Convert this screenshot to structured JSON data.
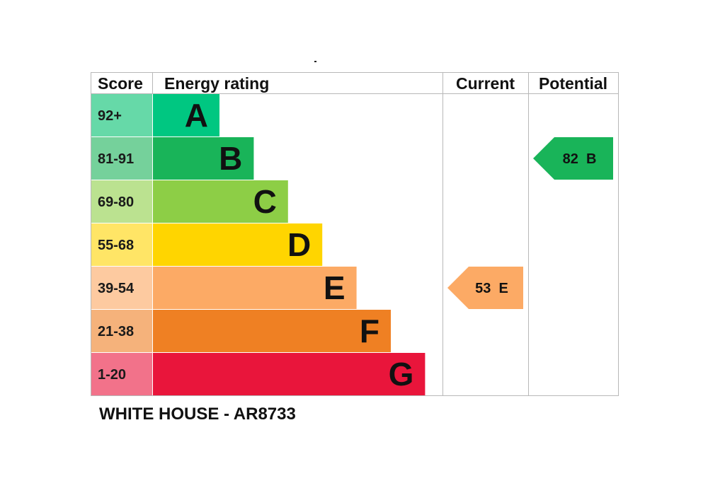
{
  "chart_data": {
    "type": "bar",
    "headers": {
      "score": "Score",
      "rating": "Energy rating",
      "current": "Current",
      "potential": "Potential"
    },
    "bands": [
      {
        "score": "92+",
        "letter": "A",
        "color": "#00c781",
        "score_bg": "#66d9a8"
      },
      {
        "score": "81-91",
        "letter": "B",
        "color": "#19b459",
        "score_bg": "#75d19b"
      },
      {
        "score": "69-80",
        "letter": "C",
        "color": "#8dce46",
        "score_bg": "#bbe290"
      },
      {
        "score": "55-68",
        "letter": "D",
        "color": "#ffd500",
        "score_bg": "#ffe566"
      },
      {
        "score": "39-54",
        "letter": "E",
        "color": "#fcaa65",
        "score_bg": "#fdcaa0"
      },
      {
        "score": "21-38",
        "letter": "F",
        "color": "#ef8023",
        "score_bg": "#f5b27b"
      },
      {
        "score": "1-20",
        "letter": "G",
        "color": "#e9153b",
        "score_bg": "#f2728a"
      }
    ],
    "current": {
      "value": 53,
      "band": "E",
      "label": "53  E",
      "color": "#fcaa65"
    },
    "potential": {
      "value": 82,
      "band": "B",
      "label": "82  B",
      "color": "#19b459"
    }
  },
  "caption": "WHITE HOUSE - AR8733"
}
